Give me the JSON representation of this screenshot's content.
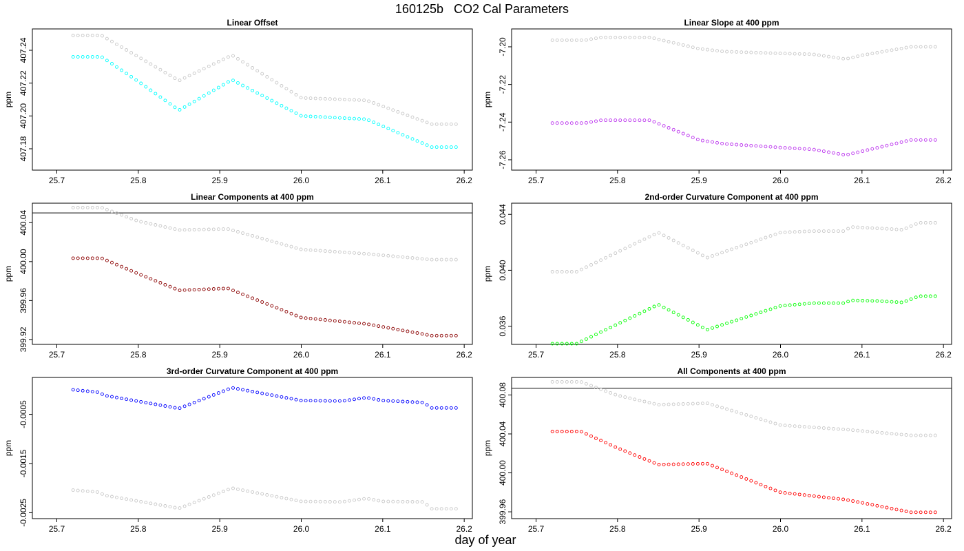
{
  "title": "160125b   CO2 Cal Parameters",
  "xlabel": "day of year",
  "chart_data": [
    {
      "type": "scatter",
      "title": "Linear Offset",
      "ylabel": "ppm",
      "xlim": [
        25.67,
        26.21
      ],
      "ylim": [
        407.167,
        407.253
      ],
      "x_ticks": [
        "25.7",
        "25.8",
        "25.9",
        "26.0",
        "26.1",
        "26.2"
      ],
      "y_ticks": [
        "407.18",
        "407.20",
        "407.22",
        "407.24"
      ],
      "hline": null,
      "gray_series": [
        [
          25.72,
          407.249
        ],
        [
          25.755,
          407.249
        ],
        [
          25.8,
          407.236
        ],
        [
          25.85,
          407.2215
        ],
        [
          25.915,
          407.237
        ],
        [
          26.0,
          407.211
        ],
        [
          26.08,
          407.2095
        ],
        [
          26.16,
          407.195
        ],
        [
          26.19,
          407.195
        ]
      ],
      "series": [
        {
          "color": "#00ffff",
          "points": [
            [
              25.72,
              407.236
            ],
            [
              25.755,
              407.236
            ],
            [
              25.8,
              407.221
            ],
            [
              25.85,
              407.2035
            ],
            [
              25.915,
              407.222
            ],
            [
              26.0,
              407.2
            ],
            [
              26.08,
              407.198
            ],
            [
              26.16,
              407.181
            ],
            [
              26.19,
              407.181
            ]
          ]
        }
      ]
    },
    {
      "type": "scatter",
      "title": "Linear Slope at 400 ppm",
      "ylabel": "ppm",
      "xlim": [
        25.67,
        26.21
      ],
      "ylim": [
        -7.2655,
        -7.1905
      ],
      "x_ticks": [
        "25.7",
        "25.8",
        "25.9",
        "26.0",
        "26.1",
        "26.2"
      ],
      "y_ticks": [
        "-7.26",
        "-7.24",
        "-7.22",
        "-7.20"
      ],
      "hline": null,
      "gray_series": [
        [
          25.72,
          -7.1965
        ],
        [
          25.76,
          -7.1965
        ],
        [
          25.78,
          -7.195
        ],
        [
          25.84,
          -7.195
        ],
        [
          25.9,
          -7.201
        ],
        [
          25.93,
          -7.2025
        ],
        [
          26.0,
          -7.2035
        ],
        [
          26.04,
          -7.204
        ],
        [
          26.08,
          -7.2065
        ],
        [
          26.1,
          -7.2045
        ],
        [
          26.16,
          -7.2
        ],
        [
          26.19,
          -7.2
        ]
      ],
      "series": [
        {
          "color": "#bb33ee",
          "points": [
            [
              25.72,
              -7.2405
            ],
            [
              25.76,
              -7.2405
            ],
            [
              25.78,
              -7.239
            ],
            [
              25.84,
              -7.239
            ],
            [
              25.9,
              -7.2495
            ],
            [
              25.93,
              -7.2515
            ],
            [
              26.0,
              -7.2535
            ],
            [
              26.04,
              -7.2545
            ],
            [
              26.08,
              -7.2575
            ],
            [
              26.1,
              -7.2555
            ],
            [
              26.16,
              -7.2495
            ],
            [
              26.19,
              -7.2495
            ]
          ]
        }
      ]
    },
    {
      "type": "scatter",
      "title": "Linear Components at 400 ppm",
      "ylabel": "ppm",
      "xlim": [
        25.67,
        26.21
      ],
      "ylim": [
        399.915,
        400.06
      ],
      "x_ticks": [
        "25.7",
        "25.8",
        "25.9",
        "26.0",
        "26.1",
        "26.2"
      ],
      "y_ticks": [
        "399.92",
        "399.96",
        "400.00",
        "400.04"
      ],
      "hline": 400.05,
      "gray_series": [
        [
          25.72,
          400.0555
        ],
        [
          25.755,
          400.0555
        ],
        [
          25.8,
          400.0415
        ],
        [
          25.85,
          400.0325
        ],
        [
          25.91,
          400.0335
        ],
        [
          26.0,
          400.0125
        ],
        [
          26.08,
          400.008
        ],
        [
          26.16,
          400.002
        ],
        [
          26.19,
          400.002
        ]
      ],
      "series": [
        {
          "color": "#8b0000",
          "points": [
            [
              25.72,
              400.0035
            ],
            [
              25.755,
              400.0035
            ],
            [
              25.8,
              399.9875
            ],
            [
              25.85,
              399.9705
            ],
            [
              25.91,
              399.9725
            ],
            [
              26.0,
              399.9425
            ],
            [
              26.08,
              399.936
            ],
            [
              26.16,
              399.924
            ],
            [
              26.19,
              399.924
            ]
          ]
        }
      ]
    },
    {
      "type": "scatter",
      "title": "2nd-order Curvature Component at 400 ppm",
      "ylabel": "ppm",
      "xlim": [
        25.67,
        26.21
      ],
      "ylim": [
        0.0347,
        0.0448
      ],
      "x_ticks": [
        "25.7",
        "25.8",
        "25.9",
        "26.0",
        "26.1",
        "26.2"
      ],
      "y_ticks": [
        "0.036",
        "0.040",
        "0.044"
      ],
      "hline": null,
      "gray_series": [
        [
          25.72,
          0.0399
        ],
        [
          25.75,
          0.0399
        ],
        [
          25.85,
          0.0427
        ],
        [
          25.91,
          0.0409
        ],
        [
          26.0,
          0.0427
        ],
        [
          26.04,
          0.0428
        ],
        [
          26.08,
          0.0428
        ],
        [
          26.085,
          0.0431
        ],
        [
          26.12,
          0.043
        ],
        [
          26.15,
          0.0429
        ],
        [
          26.17,
          0.0434
        ],
        [
          26.19,
          0.0434
        ]
      ],
      "series": [
        {
          "color": "#00ff00",
          "points": [
            [
              25.72,
              0.03475
            ],
            [
              25.75,
              0.03475
            ],
            [
              25.85,
              0.03755
            ],
            [
              25.91,
              0.03575
            ],
            [
              26.0,
              0.03745
            ],
            [
              26.04,
              0.03765
            ],
            [
              26.08,
              0.03765
            ],
            [
              26.085,
              0.03785
            ],
            [
              26.12,
              0.0378
            ],
            [
              26.15,
              0.0377
            ],
            [
              26.17,
              0.03815
            ],
            [
              26.19,
              0.03815
            ]
          ]
        }
      ]
    },
    {
      "type": "scatter",
      "title": "3rd-order Curvature Component at 400 ppm",
      "ylabel": "ppm",
      "xlim": [
        25.67,
        26.21
      ],
      "ylim": [
        -0.00262,
        0.00025
      ],
      "x_ticks": [
        "25.7",
        "25.8",
        "25.9",
        "26.0",
        "26.1",
        "26.2"
      ],
      "y_ticks": [
        "-0.0025",
        "-0.0015",
        "-0.0005"
      ],
      "hline": null,
      "gray_series": [
        [
          25.72,
          -0.00204
        ],
        [
          25.75,
          -0.00208
        ],
        [
          25.76,
          -0.00215
        ],
        [
          25.85,
          -0.00241
        ],
        [
          25.915,
          -0.002
        ],
        [
          26.0,
          -0.00227
        ],
        [
          26.05,
          -0.00228
        ],
        [
          26.08,
          -0.00221
        ],
        [
          26.1,
          -0.00227
        ],
        [
          26.15,
          -0.00228
        ],
        [
          26.16,
          -0.00242
        ],
        [
          26.19,
          -0.00242
        ]
      ],
      "series": [
        {
          "color": "#0000ff",
          "points": [
            [
              25.72,
              0.0
            ],
            [
              25.75,
              -5e-05
            ],
            [
              25.76,
              -0.00012
            ],
            [
              25.85,
              -0.00038
            ],
            [
              25.915,
              4e-05
            ],
            [
              26.0,
              -0.00022
            ],
            [
              26.05,
              -0.00023
            ],
            [
              26.08,
              -0.00016
            ],
            [
              26.1,
              -0.00022
            ],
            [
              26.15,
              -0.00026
            ],
            [
              26.16,
              -0.00037
            ],
            [
              26.19,
              -0.00037
            ]
          ]
        }
      ]
    },
    {
      "type": "scatter",
      "title": "All Components at 400 ppm",
      "ylabel": "ppm",
      "xlim": [
        25.67,
        26.21
      ],
      "ylim": [
        399.953,
        400.098
      ],
      "x_ticks": [
        "25.7",
        "25.8",
        "25.9",
        "26.0",
        "26.1",
        "26.2"
      ],
      "y_ticks": [
        "399.96",
        "400.00",
        "400.04",
        "400.08"
      ],
      "hline": 400.087,
      "gray_series": [
        [
          25.72,
          400.0935
        ],
        [
          25.755,
          400.0935
        ],
        [
          25.8,
          400.0795
        ],
        [
          25.85,
          400.07
        ],
        [
          25.91,
          400.0715
        ],
        [
          26.0,
          400.049
        ],
        [
          26.08,
          400.0445
        ],
        [
          26.16,
          400.0385
        ],
        [
          26.19,
          400.0385
        ]
      ],
      "series": [
        {
          "color": "#ff0000",
          "points": [
            [
              25.72,
              400.0425
            ],
            [
              25.755,
              400.0425
            ],
            [
              25.8,
              400.0255
            ],
            [
              25.85,
              400.0085
            ],
            [
              25.91,
              400.0095
            ],
            [
              26.0,
              399.98
            ],
            [
              26.08,
              399.9725
            ],
            [
              26.16,
              399.9595
            ],
            [
              26.19,
              399.9595
            ]
          ]
        }
      ]
    }
  ]
}
